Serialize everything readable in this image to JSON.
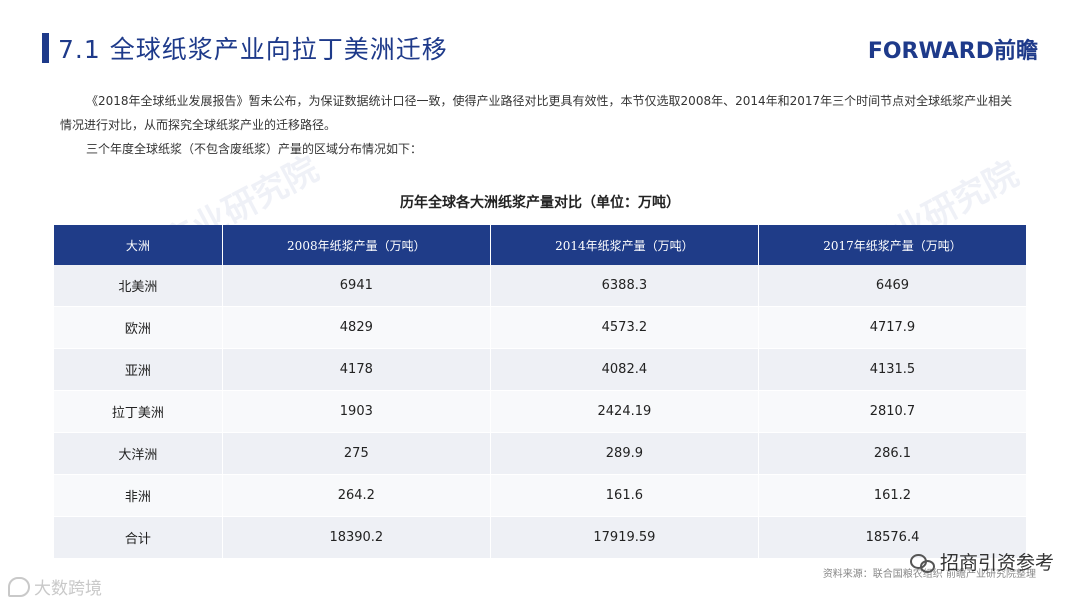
{
  "header": {
    "title": "7.1  全球纸浆产业向拉丁美洲迁移",
    "logo_text": "FORWARD前瞻"
  },
  "intro": {
    "paragraph_1": "《2018年全球纸业发展报告》暂未公布，为保证数据统计口径一致，使得产业路径对比更具有效性，本节仅选取2008年、2014年和2017年三个时间节点对全球纸浆产业相关情况进行对比，从而探究全球纸浆产业的迁移路径。",
    "paragraph_2": "三个年度全球纸浆（不包含废纸浆）产量的区域分布情况如下："
  },
  "table": {
    "title": "历年全球各大洲纸浆产量对比（单位：万吨）",
    "headers": [
      "大洲",
      "2008年纸浆产量（万吨）",
      "2014年纸浆产量（万吨）",
      "2017年纸浆产量（万吨）"
    ],
    "rows": [
      [
        "北美洲",
        "6941",
        "6388.3",
        "6469"
      ],
      [
        "欧洲",
        "4829",
        "4573.2",
        "4717.9"
      ],
      [
        "亚洲",
        "4178",
        "4082.4",
        "4131.5"
      ],
      [
        "拉丁美洲",
        "1903",
        "2424.19",
        "2810.7"
      ],
      [
        "大洋洲",
        "275",
        "289.9",
        "286.1"
      ],
      [
        "非洲",
        "264.2",
        "161.6",
        "161.2"
      ],
      [
        "合计",
        "18390.2",
        "17919.59",
        "18576.4"
      ]
    ]
  },
  "footer": {
    "source": "资料来源：联合国粮农组织  前瞻产业研究院整理",
    "wechat_label": "招商引资参考",
    "corner_brand": "大数跨境",
    "wechat_icon": "wechat-icon"
  },
  "colors": {
    "accent": "#1e3a8a",
    "table_header": "#1f3c88"
  }
}
